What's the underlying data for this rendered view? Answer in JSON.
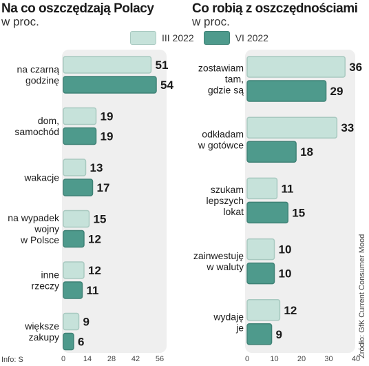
{
  "legend": {
    "series": [
      {
        "label": "III 2022",
        "color": "#c6e2da",
        "stroke": "#a8c9c0"
      },
      {
        "label": "VI 2022",
        "color": "#4e9a8c",
        "stroke": "#3f8276"
      }
    ]
  },
  "footer": {
    "info": "Info: S",
    "source": "Źródło: GfK Current Consumer Mood"
  },
  "chart_data": [
    {
      "type": "bar",
      "orientation": "horizontal",
      "title": "Na co oszczędzają Polacy",
      "subtitle": "w proc.",
      "categories": [
        [
          "na czarną",
          "godzinę"
        ],
        [
          "dom,",
          "samochód"
        ],
        [
          "wakacje"
        ],
        [
          "na wypadek",
          "wojny",
          "w Polsce"
        ],
        [
          "inne",
          "rzeczy"
        ],
        [
          "większe",
          "zakupy"
        ]
      ],
      "series": [
        {
          "name": "III 2022",
          "values": [
            51,
            19,
            13,
            15,
            12,
            9
          ]
        },
        {
          "name": "VI 2022",
          "values": [
            54,
            19,
            17,
            12,
            11,
            6
          ]
        }
      ],
      "xlim": [
        0,
        56
      ],
      "xticks": [
        0,
        14,
        28,
        42,
        56
      ]
    },
    {
      "type": "bar",
      "orientation": "horizontal",
      "title": "Co robią z oszczędnościami",
      "subtitle": "w proc.",
      "categories": [
        [
          "zostawiam",
          "tam,",
          "gdzie są"
        ],
        [
          "odkładam",
          "w gotówce"
        ],
        [
          "szukam",
          "lepszych",
          "lokat"
        ],
        [
          "zainwestuję",
          "w waluty"
        ],
        [
          "wydaję",
          "je"
        ]
      ],
      "series": [
        {
          "name": "III 2022",
          "values": [
            36,
            33,
            11,
            10,
            12
          ]
        },
        {
          "name": "VI 2022",
          "values": [
            29,
            18,
            15,
            10,
            9
          ]
        }
      ],
      "xlim": [
        0,
        40
      ],
      "xticks": [
        0,
        10,
        20,
        30,
        40
      ]
    }
  ]
}
